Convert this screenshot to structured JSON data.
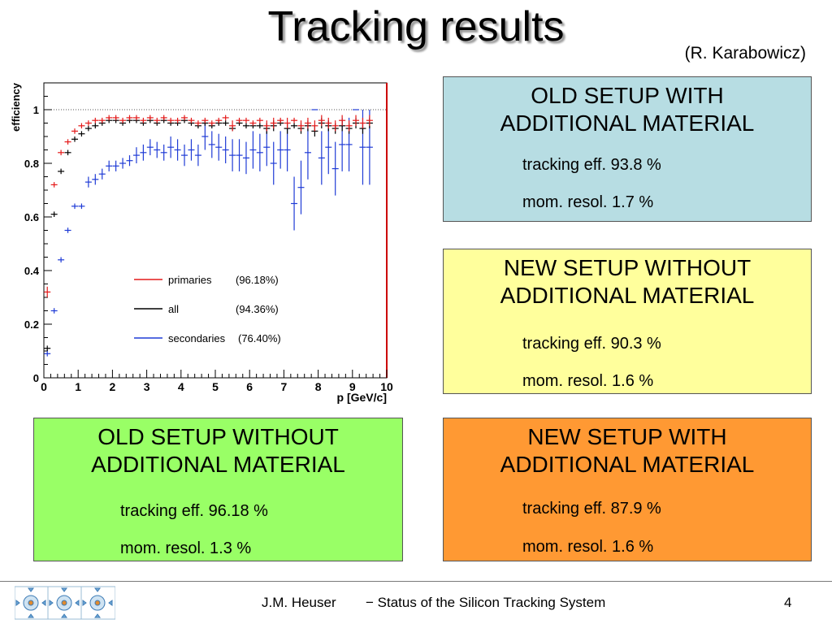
{
  "slide": {
    "title": "Tracking results",
    "author": "(R. Karabowicz)",
    "footer": {
      "presenter": "J.M. Heuser",
      "subject": "− Status of the Silicon Tracking System",
      "page": "4"
    }
  },
  "boxes": [
    {
      "id": "old-with",
      "line1": "OLD SETUP WITH",
      "line2": "ADDITIONAL MATERIAL",
      "eff": "tracking eff. 93.8 %",
      "res": "mom. resol. 1.7 %",
      "color": "#b7dde3"
    },
    {
      "id": "new-without",
      "line1": "NEW SETUP WITHOUT",
      "line2": "ADDITIONAL MATERIAL",
      "eff": "tracking eff. 90.3 %",
      "res": "mom. resol. 1.6 %",
      "color": "#ffff9c"
    },
    {
      "id": "old-without",
      "line1": "OLD SETUP WITHOUT",
      "line2": "ADDITIONAL MATERIAL",
      "eff": "tracking eff. 96.18 %",
      "res": "mom. resol. 1.3 %",
      "color": "#99ff66"
    },
    {
      "id": "new-with",
      "line1": "NEW SETUP WITH",
      "line2": "ADDITIONAL MATERIAL",
      "eff": "tracking eff. 87.9 %",
      "res": "mom. resol. 1.6 %",
      "color": "#ff9933"
    }
  ],
  "chart_data": {
    "type": "scatter",
    "title": "",
    "xlabel": "p [GeV/c]",
    "ylabel": "efficiency",
    "xlim": [
      0,
      10
    ],
    "ylim": [
      0,
      1.1
    ],
    "x_ticks": [
      "0",
      "1",
      "2",
      "3",
      "4",
      "5",
      "6",
      "7",
      "8",
      "9",
      "10"
    ],
    "y_ticks": [
      "0",
      "0.2",
      "0.4",
      "0.6",
      "0.8",
      "1"
    ],
    "reference_line": 1.0,
    "grid": false,
    "legend_position": "center-left",
    "series": [
      {
        "name": "primaries",
        "legend_value": "(96.18%)",
        "color": "#e41a1a",
        "x": [
          0.1,
          0.3,
          0.5,
          0.7,
          0.9,
          1.1,
          1.3,
          1.5,
          1.7,
          1.9,
          2.1,
          2.3,
          2.5,
          2.7,
          2.9,
          3.1,
          3.3,
          3.5,
          3.7,
          3.9,
          4.1,
          4.3,
          4.5,
          4.7,
          4.9,
          5.1,
          5.3,
          5.5,
          5.7,
          5.9,
          6.1,
          6.3,
          6.5,
          6.7,
          6.9,
          7.1,
          7.3,
          7.5,
          7.7,
          7.9,
          8.1,
          8.3,
          8.5,
          8.7,
          8.9,
          9.1,
          9.3,
          9.5
        ],
        "y": [
          0.32,
          0.72,
          0.84,
          0.88,
          0.92,
          0.94,
          0.95,
          0.96,
          0.96,
          0.97,
          0.97,
          0.96,
          0.97,
          0.97,
          0.96,
          0.97,
          0.96,
          0.97,
          0.96,
          0.96,
          0.97,
          0.96,
          0.95,
          0.96,
          0.95,
          0.96,
          0.97,
          0.94,
          0.96,
          0.96,
          0.95,
          0.96,
          0.94,
          0.95,
          0.96,
          0.95,
          0.96,
          0.94,
          0.95,
          0.94,
          0.96,
          0.95,
          0.94,
          0.96,
          0.94,
          0.96,
          0.95,
          0.96
        ],
        "err": [
          0.02,
          0.01,
          0.01,
          0.01,
          0.01,
          0.01,
          0.01,
          0.01,
          0.01,
          0.01,
          0.01,
          0.01,
          0.01,
          0.01,
          0.01,
          0.01,
          0.01,
          0.01,
          0.01,
          0.01,
          0.01,
          0.01,
          0.01,
          0.01,
          0.01,
          0.01,
          0.01,
          0.02,
          0.01,
          0.01,
          0.01,
          0.01,
          0.02,
          0.02,
          0.01,
          0.02,
          0.01,
          0.02,
          0.02,
          0.02,
          0.02,
          0.02,
          0.02,
          0.02,
          0.02,
          0.02,
          0.02,
          0.02
        ]
      },
      {
        "name": "all",
        "legend_value": "(94.36%)",
        "color": "#000000",
        "x": [
          0.1,
          0.3,
          0.5,
          0.7,
          0.9,
          1.1,
          1.3,
          1.5,
          1.7,
          1.9,
          2.1,
          2.3,
          2.5,
          2.7,
          2.9,
          3.1,
          3.3,
          3.5,
          3.7,
          3.9,
          4.1,
          4.3,
          4.5,
          4.7,
          4.9,
          5.1,
          5.3,
          5.5,
          5.7,
          5.9,
          6.1,
          6.3,
          6.5,
          6.7,
          6.9,
          7.1,
          7.3,
          7.5,
          7.7,
          7.9,
          8.1,
          8.3,
          8.5,
          8.7,
          8.9,
          9.1,
          9.3,
          9.5
        ],
        "y": [
          0.11,
          0.61,
          0.77,
          0.84,
          0.89,
          0.91,
          0.93,
          0.94,
          0.95,
          0.96,
          0.96,
          0.95,
          0.96,
          0.96,
          0.95,
          0.96,
          0.95,
          0.96,
          0.95,
          0.95,
          0.96,
          0.95,
          0.94,
          0.95,
          0.94,
          0.95,
          0.95,
          0.93,
          0.95,
          0.94,
          0.94,
          0.94,
          0.93,
          0.94,
          0.95,
          0.93,
          0.94,
          0.93,
          0.94,
          0.92,
          0.95,
          0.94,
          0.93,
          0.94,
          0.93,
          0.95,
          0.93,
          0.95
        ],
        "err": [
          0.01,
          0.01,
          0.01,
          0.01,
          0.01,
          0.01,
          0.01,
          0.01,
          0.01,
          0.01,
          0.01,
          0.01,
          0.01,
          0.01,
          0.01,
          0.01,
          0.01,
          0.01,
          0.01,
          0.01,
          0.01,
          0.01,
          0.01,
          0.01,
          0.01,
          0.01,
          0.01,
          0.01,
          0.01,
          0.01,
          0.01,
          0.01,
          0.02,
          0.02,
          0.01,
          0.02,
          0.01,
          0.02,
          0.02,
          0.02,
          0.02,
          0.02,
          0.02,
          0.02,
          0.02,
          0.02,
          0.02,
          0.02
        ]
      },
      {
        "name": "secondaries",
        "legend_value": "(76.40%)",
        "color": "#1f3bd6",
        "x": [
          0.1,
          0.3,
          0.5,
          0.7,
          0.9,
          1.1,
          1.3,
          1.5,
          1.7,
          1.9,
          2.1,
          2.3,
          2.5,
          2.7,
          2.9,
          3.1,
          3.3,
          3.5,
          3.7,
          3.9,
          4.1,
          4.3,
          4.5,
          4.7,
          4.9,
          5.1,
          5.3,
          5.5,
          5.7,
          5.9,
          6.1,
          6.3,
          6.5,
          6.7,
          6.9,
          7.1,
          7.3,
          7.5,
          7.7,
          7.9,
          8.1,
          8.3,
          8.5,
          8.7,
          8.9,
          9.1,
          9.3,
          9.5
        ],
        "y": [
          0.09,
          0.25,
          0.44,
          0.55,
          0.64,
          0.64,
          0.73,
          0.74,
          0.76,
          0.79,
          0.79,
          0.8,
          0.81,
          0.83,
          0.84,
          0.86,
          0.85,
          0.84,
          0.86,
          0.85,
          0.83,
          0.85,
          0.83,
          0.9,
          0.87,
          0.86,
          0.85,
          0.83,
          0.83,
          0.82,
          0.85,
          0.84,
          0.86,
          0.8,
          0.85,
          0.85,
          0.65,
          0.71,
          0.84,
          1.0,
          0.82,
          0.86,
          0.78,
          0.87,
          0.87,
          1.0,
          0.86,
          0.86
        ],
        "err": [
          0.01,
          0.01,
          0.01,
          0.01,
          0.01,
          0.01,
          0.02,
          0.02,
          0.02,
          0.02,
          0.02,
          0.02,
          0.02,
          0.03,
          0.03,
          0.03,
          0.03,
          0.03,
          0.04,
          0.04,
          0.04,
          0.04,
          0.04,
          0.05,
          0.05,
          0.05,
          0.05,
          0.06,
          0.06,
          0.06,
          0.07,
          0.07,
          0.07,
          0.08,
          0.07,
          0.08,
          0.1,
          0.1,
          0.1,
          0.0,
          0.1,
          0.1,
          0.1,
          0.1,
          0.1,
          0.0,
          0.14,
          0.14
        ]
      }
    ]
  }
}
